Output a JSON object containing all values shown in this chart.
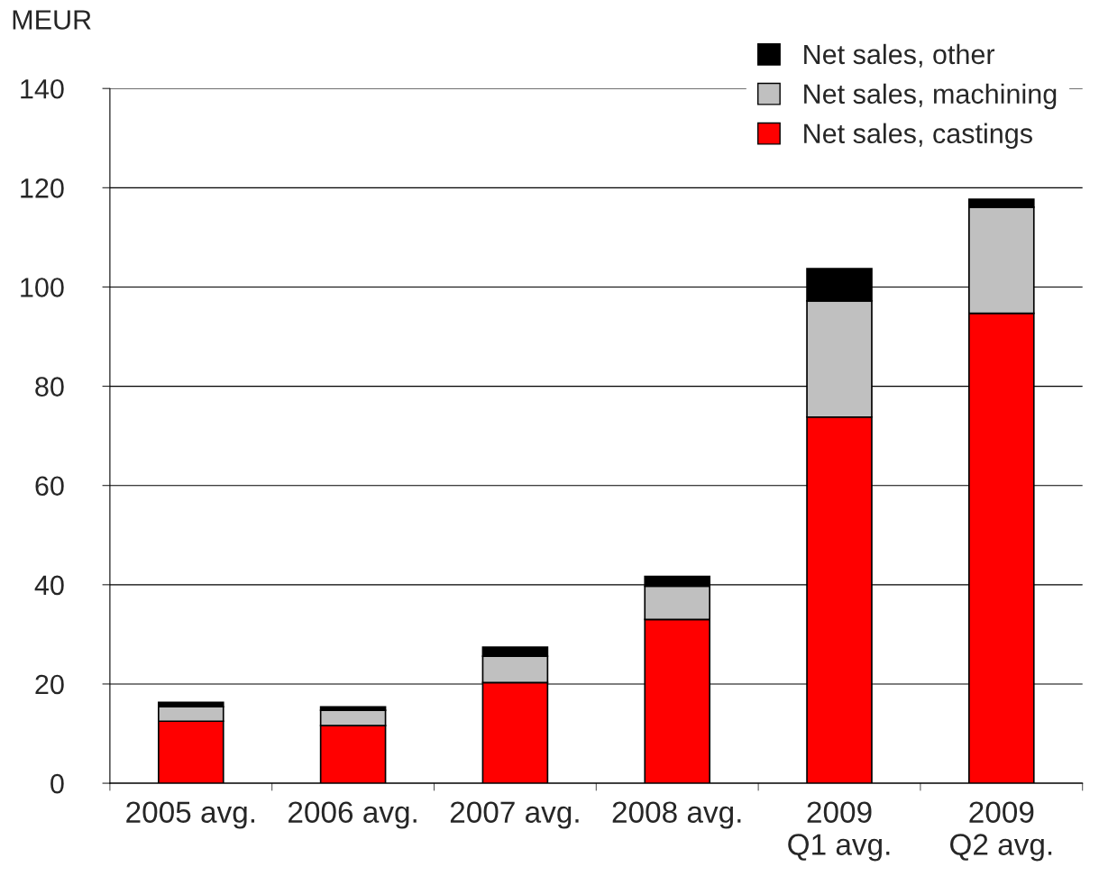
{
  "chart_data": {
    "type": "bar",
    "stacked": true,
    "ylabel": "MEUR",
    "categories": [
      "2005 avg.",
      "2006 avg.",
      "2007 avg.",
      "2008 avg.",
      "2009\nQ1 avg.",
      "2009\nQ2 avg."
    ],
    "series": [
      {
        "name": "Net sales, castings",
        "color": "#ff0000",
        "values": [
          12.5,
          11.6,
          20.3,
          33.0,
          73.8,
          94.7
        ]
      },
      {
        "name": "Net sales, machining",
        "color": "#c0c0c0",
        "values": [
          2.9,
          3.1,
          5.3,
          6.7,
          23.4,
          21.4
        ]
      },
      {
        "name": "Net sales, other",
        "color": "#000000",
        "values": [
          0.9,
          0.7,
          1.8,
          2.0,
          6.5,
          1.6
        ]
      }
    ],
    "ylim": [
      0,
      140
    ],
    "yticks": [
      0,
      20,
      40,
      60,
      80,
      100,
      120,
      140
    ],
    "grid": "y",
    "legend": "top right"
  }
}
